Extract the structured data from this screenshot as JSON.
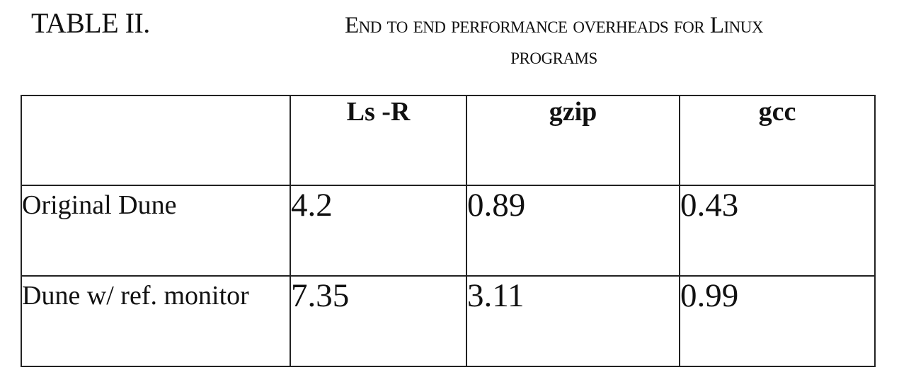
{
  "caption": {
    "label": "TABLE II.",
    "title_line1": "End to end performance overheads  for Linux",
    "title_line2": "programs"
  },
  "table": {
    "columns": [
      "",
      "Ls -R",
      "gzip",
      "gcc"
    ],
    "rows": [
      {
        "label": "Original Dune",
        "values": [
          "4.2",
          "0.89",
          "0.43"
        ]
      },
      {
        "label": "Dune w/ ref. monitor",
        "values": [
          "7.35",
          "3.11",
          "0.99"
        ]
      }
    ]
  }
}
